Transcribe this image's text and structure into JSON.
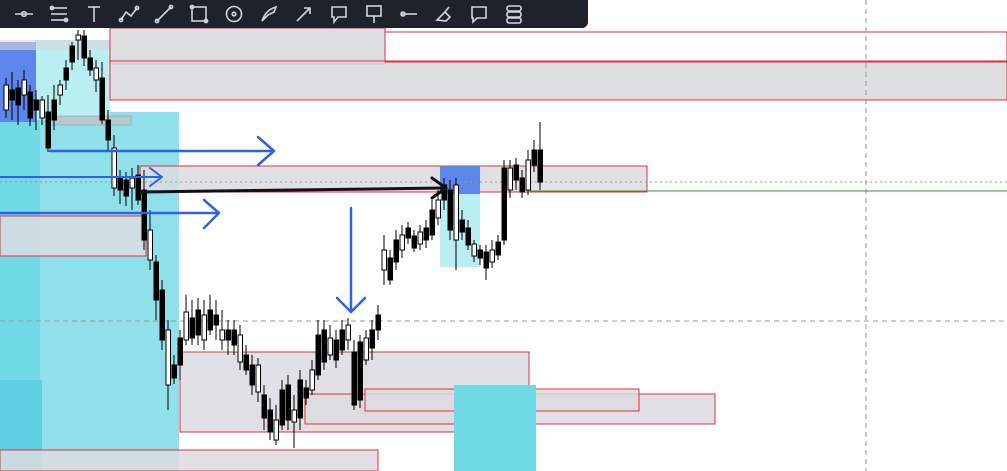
{
  "toolbar": {
    "tools": [
      {
        "name": "horizontal-ray-icon"
      },
      {
        "name": "fib-retracement-icon"
      },
      {
        "name": "text-tool-icon"
      },
      {
        "name": "path-icon"
      },
      {
        "name": "brush-icon"
      },
      {
        "name": "rectangle-icon"
      },
      {
        "name": "circle-icon"
      },
      {
        "name": "highlighter-icon"
      },
      {
        "name": "arrow-marker-icon"
      },
      {
        "name": "callout-icon"
      },
      {
        "name": "price-label-icon"
      },
      {
        "name": "trend-line-icon"
      },
      {
        "name": "eraser-icon"
      },
      {
        "name": "comment-icon"
      },
      {
        "name": "settings-list-icon"
      }
    ]
  },
  "colors": {
    "bull_candle": "#ffffff",
    "bear_candle": "#000000",
    "zone_fill": "#dcdce0",
    "zone_border": "#e0303a",
    "cyan_zone": "#5bd3e3",
    "blue_zone": "#3f6fea",
    "arrow_blue": "#2f62e8",
    "green_line": "#2e9a3a"
  }
}
